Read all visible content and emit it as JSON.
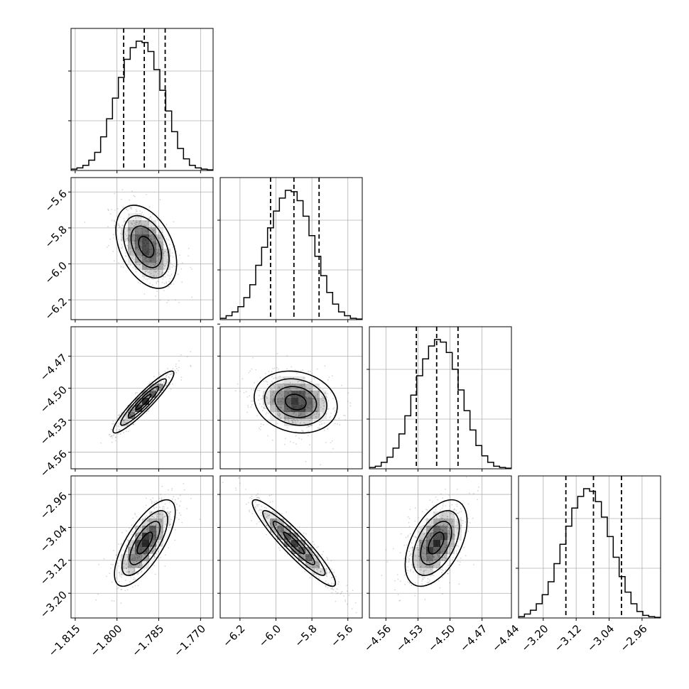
{
  "chart_data": {
    "type": "corner",
    "parameters": [
      {
        "ticks": [
          -1.815,
          -1.8,
          -1.785,
          -1.77
        ],
        "tick_labels": [
          "−1.815",
          "−1.800",
          "−1.785",
          "−1.770"
        ],
        "range": [
          -1.8165,
          -1.7655
        ],
        "quantiles": [
          -1.7976,
          -1.7902,
          -1.7827
        ],
        "hist": [
          0.01,
          0.02,
          0.04,
          0.08,
          0.14,
          0.26,
          0.4,
          0.56,
          0.72,
          0.86,
          0.95,
          1.0,
          0.99,
          0.92,
          0.78,
          0.62,
          0.46,
          0.3,
          0.17,
          0.09,
          0.04,
          0.02,
          0.01,
          0.005
        ]
      },
      {
        "ticks": [
          -6.2,
          -6.0,
          -5.8,
          -5.6
        ],
        "tick_labels": [
          "−6.2",
          "−6.0",
          "−5.8",
          "−5.6"
        ],
        "range": [
          -6.31,
          -5.52
        ],
        "quantiles": [
          -6.03,
          -5.9,
          -5.76
        ],
        "hist": [
          0.01,
          0.03,
          0.06,
          0.1,
          0.17,
          0.27,
          0.42,
          0.56,
          0.71,
          0.84,
          0.94,
          1.0,
          0.99,
          0.92,
          0.8,
          0.65,
          0.49,
          0.34,
          0.21,
          0.12,
          0.06,
          0.03,
          0.01,
          0.005
        ]
      },
      {
        "ticks": [
          -4.56,
          -4.53,
          -4.5,
          -4.47,
          -4.44
        ],
        "tick_labels": [
          "−4.56",
          "−4.53",
          "−4.50",
          "−4.47",
          "−4.44"
        ],
        "range": [
          -4.5755,
          -4.4425
        ],
        "quantiles": [
          -4.5315,
          -4.5125,
          -4.4925
        ],
        "hist": [
          0.01,
          0.02,
          0.05,
          0.09,
          0.16,
          0.27,
          0.41,
          0.57,
          0.72,
          0.85,
          0.95,
          1.0,
          0.98,
          0.9,
          0.77,
          0.61,
          0.45,
          0.3,
          0.18,
          0.1,
          0.05,
          0.02,
          0.01,
          0.005
        ]
      },
      {
        "ticks": [
          -3.2,
          -3.12,
          -3.04,
          -2.96
        ],
        "tick_labels": [
          "−3.20",
          "−3.12",
          "−3.04",
          "−2.96"
        ],
        "range": [
          -3.26,
          -2.915
        ],
        "quantiles": [
          -3.145,
          -3.078,
          -3.01
        ],
        "hist": [
          0.01,
          0.03,
          0.06,
          0.11,
          0.18,
          0.28,
          0.42,
          0.57,
          0.71,
          0.85,
          0.94,
          1.0,
          0.98,
          0.9,
          0.78,
          0.63,
          0.47,
          0.32,
          0.2,
          0.11,
          0.05,
          0.02,
          0.01,
          0.005
        ]
      }
    ],
    "pairs": [
      {
        "row": 1,
        "col": 0,
        "center": [
          -1.7895,
          -5.905
        ],
        "sigma": [
          0.0052,
          0.11
        ],
        "rho": -0.4
      },
      {
        "row": 2,
        "col": 0,
        "center": [
          -1.7905,
          -4.513
        ],
        "sigma": [
          0.0052,
          0.0138
        ],
        "rho": 0.93
      },
      {
        "row": 2,
        "col": 1,
        "center": [
          -5.89,
          -4.513
        ],
        "sigma": [
          0.11,
          0.0138
        ],
        "rho": -0.15
      },
      {
        "row": 3,
        "col": 0,
        "center": [
          -1.79,
          -3.078
        ],
        "sigma": [
          0.0052,
          0.05
        ],
        "rho": 0.72
      },
      {
        "row": 3,
        "col": 1,
        "center": [
          -5.9,
          -3.078
        ],
        "sigma": [
          0.11,
          0.05
        ],
        "rho": -0.93
      },
      {
        "row": 3,
        "col": 2,
        "center": [
          -4.513,
          -3.078
        ],
        "sigma": [
          0.0138,
          0.05
        ],
        "rho": 0.5
      }
    ],
    "contour_levels_sigma": [
      0.5,
      1.0,
      1.5,
      2.0
    ],
    "grid": true,
    "colors": {
      "hist": "#000000",
      "points": "#808080",
      "density": "#000000"
    }
  }
}
